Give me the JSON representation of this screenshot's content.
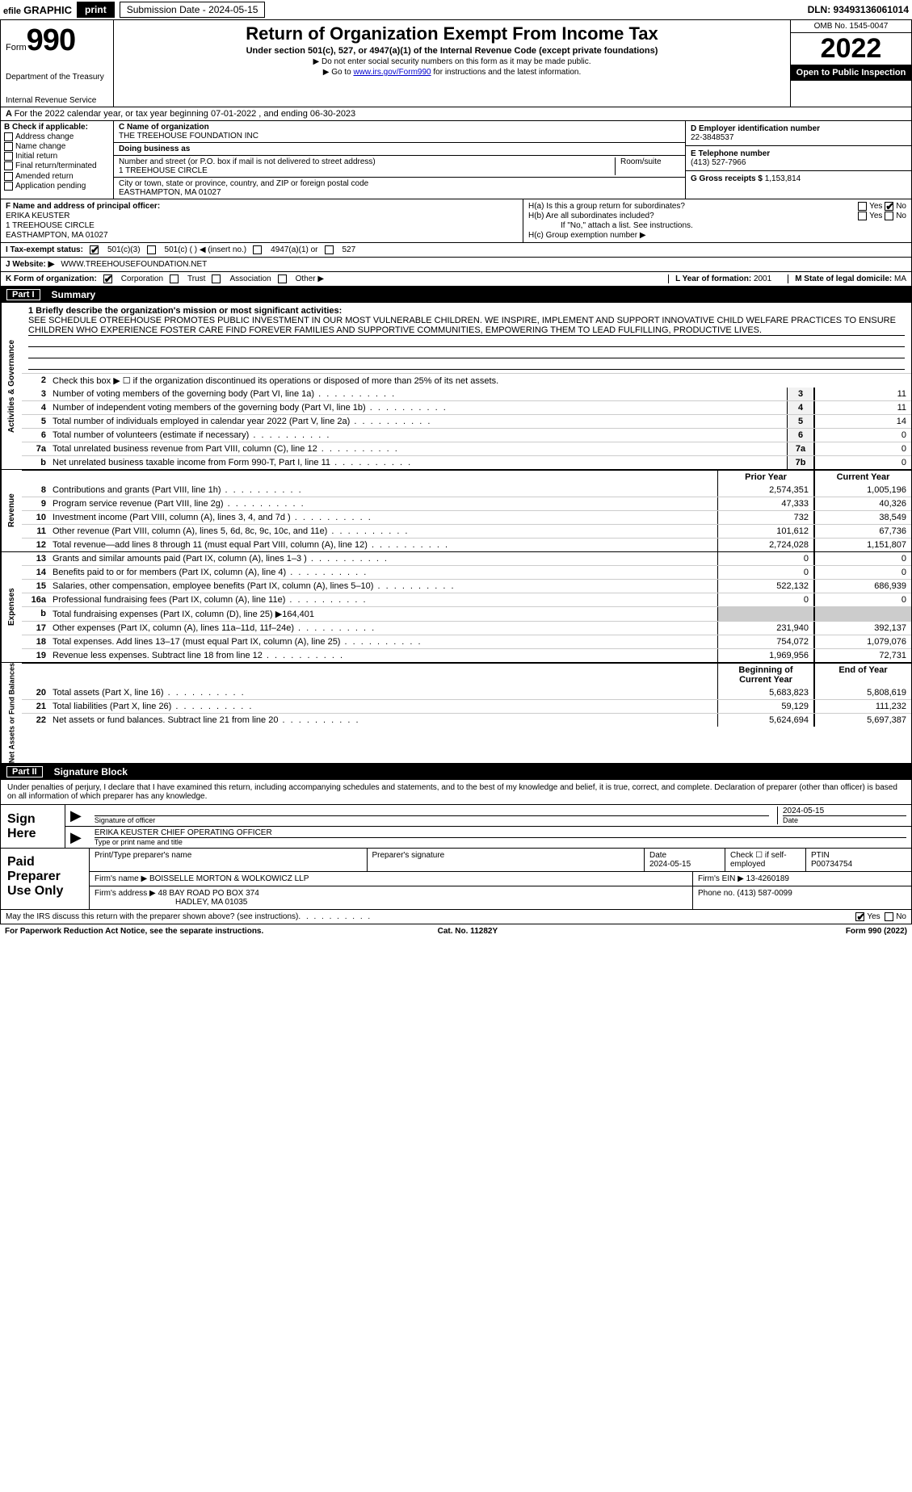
{
  "colors": {
    "black": "#000000",
    "white": "#ffffff",
    "link": "#0000cc",
    "boxbg": "#f2f2f2"
  },
  "topbar": {
    "efile_prefix": "efile",
    "efile_graphic": "GRAPHIC",
    "print": "print",
    "submission_label": "Submission Date - 2024-05-15",
    "dln": "DLN: 93493136061014"
  },
  "header": {
    "form_word": "Form",
    "form_number": "990",
    "dept": "Department of the Treasury",
    "irs": "Internal Revenue Service",
    "title": "Return of Organization Exempt From Income Tax",
    "subtitle": "Under section 501(c), 527, or 4947(a)(1) of the Internal Revenue Code (except private foundations)",
    "note1": "▶ Do not enter social security numbers on this form as it may be made public.",
    "note2_pre": "▶ Go to ",
    "note2_link": "www.irs.gov/Form990",
    "note2_post": " for instructions and the latest information.",
    "omb": "OMB No. 1545-0047",
    "year": "2022",
    "open": "Open to Public Inspection"
  },
  "periodA": "For the 2022 calendar year, or tax year beginning 07-01-2022    , and ending 06-30-2023",
  "boxB": {
    "header": "B Check if applicable:",
    "items": [
      "Address change",
      "Name change",
      "Initial return",
      "Final return/terminated",
      "Amended return",
      "Application pending"
    ]
  },
  "boxC": {
    "name_label": "C Name of organization",
    "name": "THE TREEHOUSE FOUNDATION INC",
    "dba_label": "Doing business as",
    "dba": "",
    "street_label": "Number and street (or P.O. box if mail is not delivered to street address)",
    "room_label": "Room/suite",
    "street": "1 TREEHOUSE CIRCLE",
    "city_label": "City or town, state or province, country, and ZIP or foreign postal code",
    "city": "EASTHAMPTON, MA  01027"
  },
  "boxD": {
    "label": "D Employer identification number",
    "value": "22-3848537"
  },
  "boxE": {
    "label": "E Telephone number",
    "value": "(413) 527-7966"
  },
  "boxG": {
    "label": "G Gross receipts $",
    "value": "1,153,814"
  },
  "boxF": {
    "label": "F  Name and address of principal officer:",
    "name": "ERIKA KEUSTER",
    "street": "1 TREEHOUSE CIRCLE",
    "city": "EASTHAMPTON, MA  01027"
  },
  "boxH": {
    "a": "H(a)  Is this a group return for subordinates?",
    "a_yes": "Yes",
    "a_no": "No",
    "b": "H(b)  Are all subordinates included?",
    "b_note": "If \"No,\" attach a list. See instructions.",
    "c": "H(c)  Group exemption number ▶"
  },
  "rowI": {
    "label": "I   Tax-exempt status:",
    "opt1": "501(c)(3)",
    "opt2": "501(c) (  ) ◀ (insert no.)",
    "opt3": "4947(a)(1) or",
    "opt4": "527"
  },
  "rowJ": {
    "label": "J   Website: ▶",
    "value": "WWW.TREEHOUSEFOUNDATION.NET"
  },
  "rowK": {
    "label": "K Form of organization:",
    "opts": [
      "Corporation",
      "Trust",
      "Association",
      "Other ▶"
    ],
    "L_label": "L Year of formation:",
    "L_val": "2001",
    "M_label": "M State of legal domicile:",
    "M_val": "MA"
  },
  "partI": {
    "num": "Part I",
    "title": "Summary"
  },
  "mission": {
    "line1_label": "1  Briefly describe the organization's mission or most significant activities:",
    "text": "SEE SCHEDULE OTREEHOUSE PROMOTES PUBLIC INVESTMENT IN OUR MOST VULNERABLE CHILDREN. WE INSPIRE, IMPLEMENT AND SUPPORT INNOVATIVE CHILD WELFARE PRACTICES TO ENSURE CHILDREN WHO EXPERIENCE FOSTER CARE FIND FOREVER FAMILIES AND SUPPORTIVE COMMUNITIES, EMPOWERING THEM TO LEAD FULFILLING, PRODUCTIVE LIVES."
  },
  "governance": {
    "side": "Activities & Governance",
    "line2": "Check this box ▶ ☐  if the organization discontinued its operations or disposed of more than 25% of its net assets.",
    "rows": [
      {
        "n": "3",
        "d": "Number of voting members of the governing body (Part VI, line 1a)",
        "box": "3",
        "v": "11"
      },
      {
        "n": "4",
        "d": "Number of independent voting members of the governing body (Part VI, line 1b)",
        "box": "4",
        "v": "11"
      },
      {
        "n": "5",
        "d": "Total number of individuals employed in calendar year 2022 (Part V, line 2a)",
        "box": "5",
        "v": "14"
      },
      {
        "n": "6",
        "d": "Total number of volunteers (estimate if necessary)",
        "box": "6",
        "v": "0"
      },
      {
        "n": "7a",
        "d": "Total unrelated business revenue from Part VIII, column (C), line 12",
        "box": "7a",
        "v": "0"
      },
      {
        "n": "b",
        "d": "Net unrelated business taxable income from Form 990-T, Part I, line 11",
        "box": "7b",
        "v": "0"
      }
    ]
  },
  "revenue": {
    "side": "Revenue",
    "header_prior": "Prior Year",
    "header_current": "Current Year",
    "rows": [
      {
        "n": "8",
        "d": "Contributions and grants (Part VIII, line 1h)",
        "p": "2,574,351",
        "c": "1,005,196"
      },
      {
        "n": "9",
        "d": "Program service revenue (Part VIII, line 2g)",
        "p": "47,333",
        "c": "40,326"
      },
      {
        "n": "10",
        "d": "Investment income (Part VIII, column (A), lines 3, 4, and 7d )",
        "p": "732",
        "c": "38,549"
      },
      {
        "n": "11",
        "d": "Other revenue (Part VIII, column (A), lines 5, 6d, 8c, 9c, 10c, and 11e)",
        "p": "101,612",
        "c": "67,736"
      },
      {
        "n": "12",
        "d": "Total revenue—add lines 8 through 11 (must equal Part VIII, column (A), line 12)",
        "p": "2,724,028",
        "c": "1,151,807"
      }
    ]
  },
  "expenses": {
    "side": "Expenses",
    "rows": [
      {
        "n": "13",
        "d": "Grants and similar amounts paid (Part IX, column (A), lines 1–3 )",
        "p": "0",
        "c": "0"
      },
      {
        "n": "14",
        "d": "Benefits paid to or for members (Part IX, column (A), line 4)",
        "p": "0",
        "c": "0"
      },
      {
        "n": "15",
        "d": "Salaries, other compensation, employee benefits (Part IX, column (A), lines 5–10)",
        "p": "522,132",
        "c": "686,939"
      },
      {
        "n": "16a",
        "d": "Professional fundraising fees (Part IX, column (A), line 11e)",
        "p": "0",
        "c": "0"
      },
      {
        "n": "b",
        "d": "Total fundraising expenses (Part IX, column (D), line 25) ▶164,401",
        "p": "",
        "c": ""
      },
      {
        "n": "17",
        "d": "Other expenses (Part IX, column (A), lines 11a–11d, 11f–24e)",
        "p": "231,940",
        "c": "392,137"
      },
      {
        "n": "18",
        "d": "Total expenses. Add lines 13–17 (must equal Part IX, column (A), line 25)",
        "p": "754,072",
        "c": "1,079,076"
      },
      {
        "n": "19",
        "d": "Revenue less expenses. Subtract line 18 from line 12",
        "p": "1,969,956",
        "c": "72,731"
      }
    ]
  },
  "netassets": {
    "side": "Net Assets or Fund Balances",
    "header_prior": "Beginning of Current Year",
    "header_current": "End of Year",
    "rows": [
      {
        "n": "20",
        "d": "Total assets (Part X, line 16)",
        "p": "5,683,823",
        "c": "5,808,619"
      },
      {
        "n": "21",
        "d": "Total liabilities (Part X, line 26)",
        "p": "59,129",
        "c": "111,232"
      },
      {
        "n": "22",
        "d": "Net assets or fund balances. Subtract line 21 from line 20",
        "p": "5,624,694",
        "c": "5,697,387"
      }
    ]
  },
  "partII": {
    "num": "Part II",
    "title": "Signature Block"
  },
  "sig": {
    "declaration": "Under penalties of perjury, I declare that I have examined this return, including accompanying schedules and statements, and to the best of my knowledge and belief, it is true, correct, and complete. Declaration of preparer (other than officer) is based on all information of which preparer has any knowledge.",
    "sign_here": "Sign Here",
    "sig_officer": "Signature of officer",
    "date_label": "Date",
    "date": "2024-05-15",
    "name_title": "ERIKA KEUSTER  CHIEF OPERATING OFFICER",
    "name_label": "Type or print name and title"
  },
  "paid": {
    "label": "Paid Preparer Use Only",
    "h_name": "Print/Type preparer's name",
    "h_sig": "Preparer's signature",
    "h_date": "Date",
    "h_check": "Check ☐ if self-employed",
    "h_ptin": "PTIN",
    "date": "2024-05-15",
    "ptin": "P00734754",
    "firm_name_lbl": "Firm's name    ▶",
    "firm_name": "BOISSELLE MORTON & WOLKOWICZ LLP",
    "firm_ein_lbl": "Firm's EIN ▶",
    "firm_ein": "13-4260189",
    "firm_addr_lbl": "Firm's address ▶",
    "firm_addr1": "48 BAY ROAD PO BOX 374",
    "firm_addr2": "HADLEY, MA  01035",
    "phone_lbl": "Phone no.",
    "phone": "(413) 587-0099"
  },
  "discuss": {
    "q": "May the IRS discuss this return with the preparer shown above? (see instructions)",
    "yes": "Yes",
    "no": "No"
  },
  "footer": {
    "left": "For Paperwork Reduction Act Notice, see the separate instructions.",
    "mid": "Cat. No. 11282Y",
    "right": "Form 990 (2022)"
  }
}
